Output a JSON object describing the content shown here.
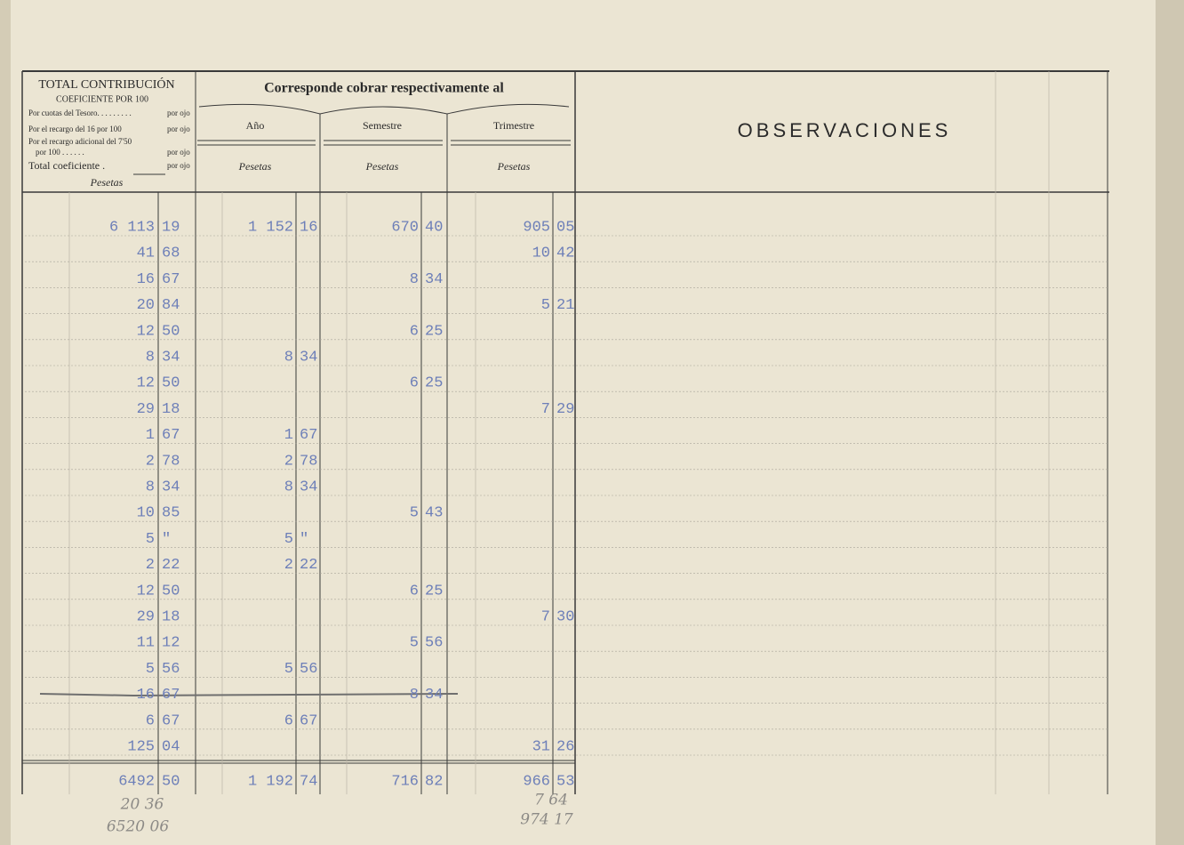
{
  "header": {
    "total_title": "TOTAL CONTRIBUCIÓN",
    "coefficient_title": "COEFICIENTE POR 100",
    "coefficient_lines": [
      {
        "label": "Por cuotas del Tesoro. . . . . . . . .",
        "unit": "por ojo"
      },
      {
        "label": "Por el recargo del 16 por 100",
        "unit": "por ojo"
      },
      {
        "label": "Por el recargo adicional del 7'50",
        "unit": null
      },
      {
        "label": "por 100 . . . . . .",
        "unit": "por ojo"
      },
      {
        "label": "Total coeficiente .",
        "unit": "por ojo"
      }
    ],
    "total_unit": "Pesetas",
    "group_title": "Corresponde cobrar respectivamente al",
    "columns": [
      {
        "title": "Año",
        "unit": "Pesetas"
      },
      {
        "title": "Semestre",
        "unit": "Pesetas"
      },
      {
        "title": "Trimestre",
        "unit": "Pesetas"
      }
    ],
    "observations": "OBSERVACIONES"
  },
  "table": {
    "rows": [
      {
        "total": [
          "6 113",
          "19"
        ],
        "ano": [
          "1 152",
          "16"
        ],
        "semestre": [
          "670",
          "40"
        ],
        "trimestre": [
          "905",
          "05"
        ]
      },
      {
        "total": [
          "41",
          "68"
        ],
        "trimestre": [
          "10",
          "42"
        ]
      },
      {
        "total": [
          "16",
          "67"
        ],
        "semestre": [
          "8",
          "34"
        ]
      },
      {
        "total": [
          "20",
          "84"
        ],
        "trimestre": [
          "5",
          "21"
        ]
      },
      {
        "total": [
          "12",
          "50"
        ],
        "semestre": [
          "6",
          "25"
        ]
      },
      {
        "total": [
          "8",
          "34"
        ],
        "ano": [
          "8",
          "34"
        ]
      },
      {
        "total": [
          "12",
          "50"
        ],
        "semestre": [
          "6",
          "25"
        ]
      },
      {
        "total": [
          "29",
          "18"
        ],
        "trimestre": [
          "7",
          "29"
        ]
      },
      {
        "total": [
          "1",
          "67"
        ],
        "ano": [
          "1",
          "67"
        ]
      },
      {
        "total": [
          "2",
          "78"
        ],
        "ano": [
          "2",
          "78"
        ]
      },
      {
        "total": [
          "8",
          "34"
        ],
        "ano": [
          "8",
          "34"
        ]
      },
      {
        "total": [
          "10",
          "85"
        ],
        "semestre": [
          "5",
          "43"
        ]
      },
      {
        "total": [
          "5",
          "\""
        ],
        "ano": [
          "5",
          "\""
        ]
      },
      {
        "total": [
          "2",
          "22"
        ],
        "ano": [
          "2",
          "22"
        ]
      },
      {
        "total": [
          "12",
          "50"
        ],
        "semestre": [
          "6",
          "25"
        ]
      },
      {
        "total": [
          "29",
          "18"
        ],
        "trimestre": [
          "7",
          "30"
        ]
      },
      {
        "total": [
          "11",
          "12"
        ],
        "semestre": [
          "5",
          "56"
        ]
      },
      {
        "total": [
          "5",
          "56"
        ],
        "ano": [
          "5",
          "56"
        ]
      },
      {
        "total": [
          "16",
          "67"
        ],
        "semestre": [
          "8",
          "34"
        ]
      },
      {
        "total": [
          "6",
          "67"
        ],
        "ano": [
          "6",
          "67"
        ]
      },
      {
        "total": [
          "125",
          "04"
        ],
        "trimestre": [
          "31",
          "26"
        ]
      }
    ],
    "totals": {
      "total": [
        "6492",
        "50"
      ],
      "ano": [
        "1 192",
        "74"
      ],
      "semestre": [
        "716",
        "82"
      ],
      "trimestre": [
        "966",
        "53"
      ]
    }
  },
  "handwritten": [
    "20 36",
    "6520 06",
    "7 64",
    "974 17"
  ]
}
